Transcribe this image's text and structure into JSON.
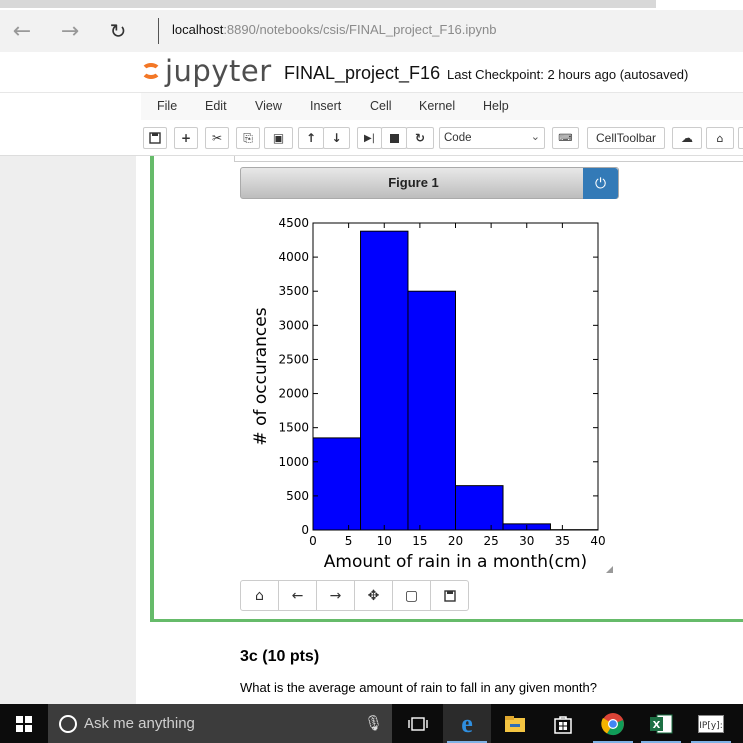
{
  "browser": {
    "url_host": "localhost",
    "url_rest": ":8890/notebooks/csis/FINAL_project_F16.ipynb",
    "icons": [
      "back-arrow-icon",
      "forward-arrow-icon",
      "refresh-icon"
    ]
  },
  "jupyter": {
    "logo_text": "jupyter",
    "notebook_title": "FINAL_project_F16",
    "checkpoint": "Last Checkpoint: 2 hours ago (autosaved)"
  },
  "menu": [
    "File",
    "Edit",
    "View",
    "Insert",
    "Cell",
    "Kernel",
    "Help"
  ],
  "toolbar": {
    "cell_type": "Code",
    "celltoolbar_label": "CellToolbar"
  },
  "figure": {
    "title": "Figure 1"
  },
  "chart_data": {
    "type": "bar",
    "histogram": true,
    "bin_edges": [
      0,
      6.67,
      13.33,
      20,
      26.67,
      33.33,
      40
    ],
    "values": [
      1350,
      4380,
      3500,
      650,
      90,
      5
    ],
    "xlabel": "Amount of rain in a month(cm)",
    "ylabel": "# of occurances",
    "xlim": [
      0,
      40
    ],
    "ylim": [
      0,
      4500
    ],
    "xticks": [
      "0",
      "5",
      "10",
      "15",
      "20",
      "25",
      "30",
      "35",
      "40"
    ],
    "yticks": [
      "0",
      "500",
      "1000",
      "1500",
      "2000",
      "2500",
      "3000",
      "3500",
      "4000",
      "4500"
    ],
    "bar_color": "#0000ff",
    "grid": false
  },
  "cell_3c": {
    "heading": "3c (10 pts)",
    "question": "What is the average amount of rain to fall in any given month?"
  },
  "taskbar": {
    "search_placeholder": "Ask me anything"
  }
}
